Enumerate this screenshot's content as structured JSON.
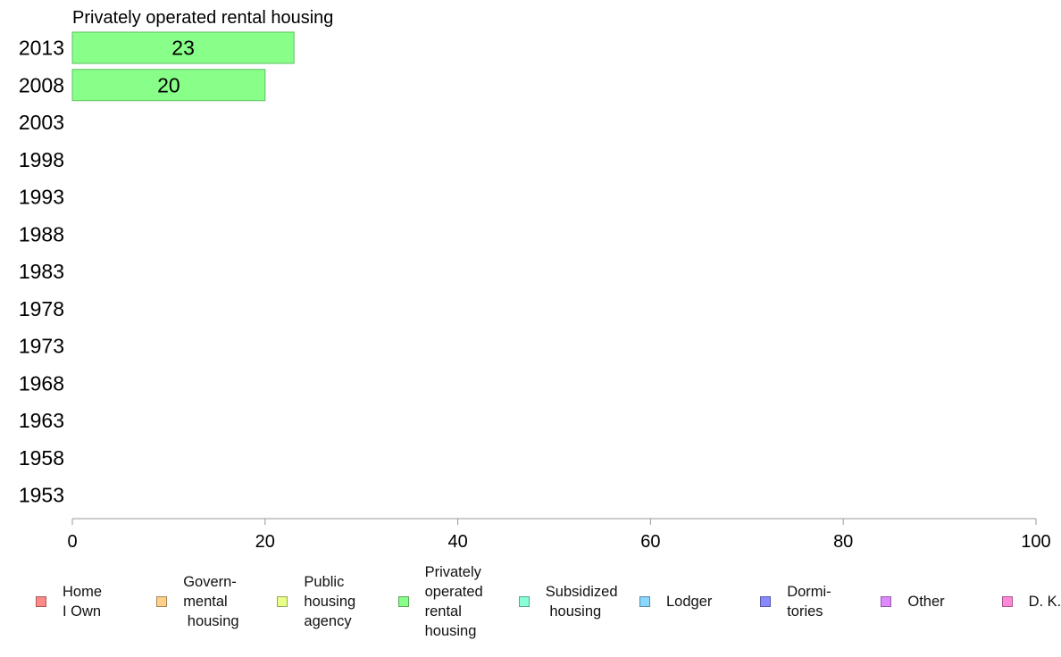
{
  "chart_data": {
    "type": "bar",
    "orientation": "horizontal",
    "title": "Privately operated rental housing",
    "categories": [
      "2013",
      "2008",
      "2003",
      "1998",
      "1993",
      "1988",
      "1983",
      "1978",
      "1973",
      "1968",
      "1963",
      "1958",
      "1953"
    ],
    "series": [
      {
        "name": "Privately operated rental housing",
        "color": "#88ff88",
        "values": [
          23,
          20,
          null,
          null,
          null,
          null,
          null,
          null,
          null,
          null,
          null,
          null,
          null
        ],
        "labels": [
          "23",
          "20",
          "",
          "",
          "",
          "",
          "",
          "",
          "",
          "",
          "",
          "",
          ""
        ]
      }
    ],
    "xlim": [
      0,
      100
    ],
    "xticks": [
      0,
      20,
      40,
      60,
      80,
      100
    ],
    "xlabel": "",
    "ylabel": "",
    "grid": false,
    "legend_position": "bottom"
  },
  "legend": [
    {
      "label": "Home\nI Own",
      "color": "#ff8888"
    },
    {
      "label": "Govern-\nmental\n housing",
      "color": "#ffd088"
    },
    {
      "label": "Public\nhousing\nagency",
      "color": "#e8ff88"
    },
    {
      "label": "Privately\noperated\nrental\nhousing",
      "color": "#88ff88"
    },
    {
      "label": "Subsidized\n housing",
      "color": "#88ffd8"
    },
    {
      "label": "Lodger",
      "color": "#88d8ff"
    },
    {
      "label": "Dormi-\ntories",
      "color": "#8888ff"
    },
    {
      "label": "Other",
      "color": "#e088ff"
    },
    {
      "label": "D. K.",
      "color": "#ff88d8"
    }
  ]
}
